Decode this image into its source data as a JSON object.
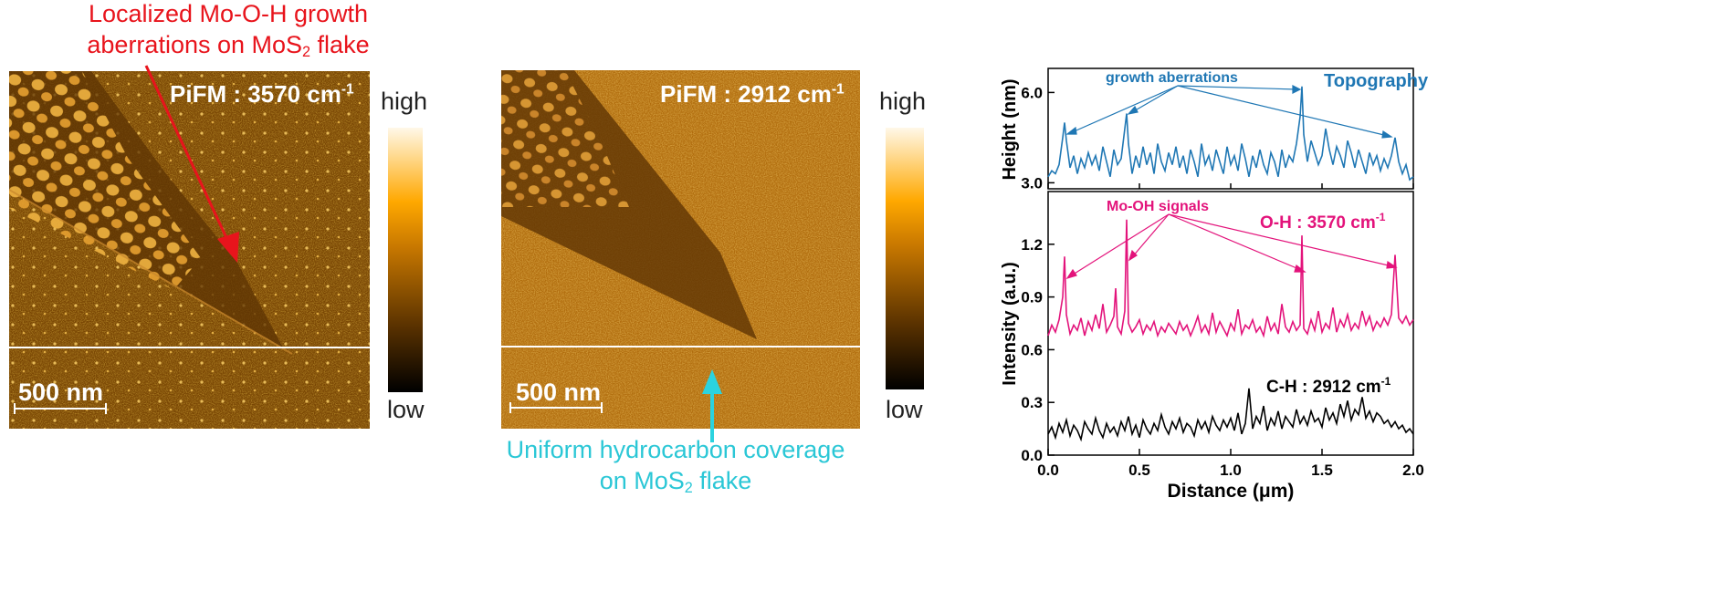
{
  "left_annotation": {
    "line1": "Localized Mo-O-H growth",
    "line2_pre": "aberrations on MoS",
    "line2_sub": "2",
    "line2_post": " flake",
    "color": "#e8141c"
  },
  "bottom_annotation": {
    "line1": "Uniform hydrocarbon coverage",
    "line2_pre": "on MoS",
    "line2_sub": "2",
    "line2_post": " flake",
    "color": "#2bc7d6"
  },
  "image_left": {
    "label_pre": "PiFM : 3570 cm",
    "label_sup": "-1",
    "scale": "500 nm"
  },
  "image_mid": {
    "label_pre": "PiFM : 2912 cm",
    "label_sup": "-1",
    "scale": "500 nm"
  },
  "colorbar": {
    "high": "high",
    "low": "low",
    "colors": [
      "#000000",
      "#5a3200",
      "#c87800",
      "#ffa800",
      "#fff8e8"
    ]
  },
  "chart_data": [
    {
      "type": "line",
      "ylabel": "Height (nm)",
      "xlim": [
        0,
        2.0
      ],
      "ylim": [
        2.8,
        6.8
      ],
      "yticks": [
        3.0,
        6.0
      ],
      "ytick_labels": [
        "3.0",
        "6.0"
      ],
      "series": [
        {
          "name": "Topography",
          "color": "#1f77b4",
          "x": [
            0.0,
            0.02,
            0.04,
            0.06,
            0.08,
            0.09,
            0.1,
            0.12,
            0.14,
            0.16,
            0.18,
            0.2,
            0.22,
            0.24,
            0.26,
            0.28,
            0.3,
            0.32,
            0.34,
            0.36,
            0.38,
            0.4,
            0.42,
            0.43,
            0.44,
            0.46,
            0.48,
            0.5,
            0.52,
            0.54,
            0.56,
            0.58,
            0.6,
            0.62,
            0.64,
            0.66,
            0.68,
            0.7,
            0.72,
            0.74,
            0.76,
            0.78,
            0.8,
            0.82,
            0.84,
            0.86,
            0.88,
            0.9,
            0.92,
            0.94,
            0.96,
            0.98,
            1.0,
            1.02,
            1.04,
            1.06,
            1.08,
            1.1,
            1.12,
            1.14,
            1.16,
            1.18,
            1.2,
            1.22,
            1.24,
            1.26,
            1.28,
            1.3,
            1.32,
            1.34,
            1.36,
            1.38,
            1.39,
            1.4,
            1.42,
            1.44,
            1.46,
            1.48,
            1.5,
            1.52,
            1.54,
            1.56,
            1.58,
            1.6,
            1.62,
            1.64,
            1.66,
            1.68,
            1.7,
            1.72,
            1.74,
            1.76,
            1.78,
            1.8,
            1.82,
            1.84,
            1.86,
            1.88,
            1.9,
            1.92,
            1.94,
            1.96,
            1.98,
            2.0
          ],
          "y": [
            3.2,
            3.4,
            3.3,
            3.6,
            4.5,
            5.0,
            4.4,
            3.5,
            3.9,
            3.3,
            3.8,
            3.5,
            4.0,
            3.6,
            3.9,
            3.4,
            4.2,
            3.7,
            3.2,
            4.1,
            3.6,
            3.8,
            4.8,
            5.3,
            4.3,
            3.3,
            3.9,
            3.5,
            4.2,
            3.6,
            4.0,
            3.3,
            4.3,
            3.7,
            3.4,
            4.0,
            3.6,
            4.2,
            3.5,
            3.9,
            3.3,
            4.1,
            3.7,
            3.2,
            4.3,
            3.6,
            3.9,
            3.4,
            4.1,
            3.7,
            3.3,
            4.2,
            3.6,
            3.9,
            3.4,
            4.3,
            3.8,
            3.2,
            3.9,
            3.5,
            4.1,
            3.6,
            3.3,
            4.0,
            3.7,
            3.2,
            4.1,
            3.5,
            3.9,
            3.7,
            4.3,
            5.2,
            6.2,
            4.6,
            3.7,
            4.4,
            4.0,
            3.6,
            3.9,
            4.8,
            4.1,
            3.6,
            4.2,
            3.9,
            3.5,
            4.4,
            4.0,
            3.5,
            4.1,
            3.7,
            3.3,
            4.0,
            3.6,
            3.9,
            3.4,
            3.8,
            3.5,
            3.9,
            4.5,
            3.7,
            3.3,
            3.6,
            3.1,
            3.2
          ]
        }
      ]
    },
    {
      "type": "line",
      "xlabel": "Distance (μm)",
      "ylabel": "Intensity (a.u.)",
      "xlim": [
        0,
        2.0
      ],
      "ylim": [
        0,
        1.5
      ],
      "xticks": [
        0.0,
        0.5,
        1.0,
        1.5,
        2.0
      ],
      "xtick_labels": [
        "0.0",
        "0.5",
        "1.0",
        "1.5",
        "2.0"
      ],
      "yticks": [
        0.0,
        0.3,
        0.6,
        0.9,
        1.2
      ],
      "ytick_labels": [
        "0.0",
        "0.3",
        "0.6",
        "0.9",
        "1.2"
      ],
      "series": [
        {
          "name_pre": "O-H : 3570 cm",
          "name_sup": "-1",
          "color": "#e3137b",
          "x": [
            0.0,
            0.02,
            0.04,
            0.06,
            0.08,
            0.09,
            0.1,
            0.12,
            0.14,
            0.16,
            0.18,
            0.2,
            0.22,
            0.24,
            0.26,
            0.28,
            0.3,
            0.32,
            0.34,
            0.36,
            0.37,
            0.38,
            0.4,
            0.42,
            0.43,
            0.44,
            0.46,
            0.48,
            0.5,
            0.52,
            0.54,
            0.56,
            0.58,
            0.6,
            0.62,
            0.64,
            0.66,
            0.68,
            0.7,
            0.72,
            0.74,
            0.76,
            0.78,
            0.8,
            0.82,
            0.84,
            0.86,
            0.88,
            0.9,
            0.92,
            0.94,
            0.96,
            0.98,
            1.0,
            1.02,
            1.04,
            1.06,
            1.08,
            1.1,
            1.12,
            1.14,
            1.16,
            1.18,
            1.2,
            1.22,
            1.24,
            1.26,
            1.28,
            1.3,
            1.32,
            1.34,
            1.36,
            1.38,
            1.39,
            1.4,
            1.42,
            1.44,
            1.46,
            1.48,
            1.5,
            1.52,
            1.54,
            1.56,
            1.58,
            1.6,
            1.62,
            1.64,
            1.66,
            1.68,
            1.7,
            1.72,
            1.74,
            1.76,
            1.78,
            1.8,
            1.82,
            1.84,
            1.86,
            1.88,
            1.9,
            1.92,
            1.94,
            1.96,
            1.98,
            2.0
          ],
          "y": [
            0.68,
            0.74,
            0.7,
            0.77,
            0.9,
            1.13,
            0.8,
            0.69,
            0.74,
            0.71,
            0.78,
            0.68,
            0.76,
            0.71,
            0.8,
            0.72,
            0.86,
            0.7,
            0.74,
            0.79,
            0.95,
            0.73,
            0.69,
            0.82,
            1.34,
            0.75,
            0.7,
            0.73,
            0.77,
            0.69,
            0.74,
            0.71,
            0.76,
            0.68,
            0.73,
            0.7,
            0.75,
            0.72,
            0.69,
            0.76,
            0.71,
            0.74,
            0.68,
            0.73,
            0.79,
            0.7,
            0.74,
            0.69,
            0.81,
            0.7,
            0.76,
            0.72,
            0.68,
            0.75,
            0.71,
            0.83,
            0.69,
            0.74,
            0.72,
            0.77,
            0.7,
            0.73,
            0.68,
            0.79,
            0.71,
            0.75,
            0.69,
            0.86,
            0.73,
            0.7,
            0.76,
            0.71,
            0.74,
            1.25,
            0.72,
            0.69,
            0.77,
            0.71,
            0.82,
            0.7,
            0.75,
            0.72,
            0.84,
            0.7,
            0.77,
            0.73,
            0.8,
            0.71,
            0.75,
            0.72,
            0.82,
            0.74,
            0.79,
            0.71,
            0.76,
            0.73,
            0.78,
            0.74,
            0.8,
            1.14,
            0.78,
            0.75,
            0.79,
            0.74,
            0.77
          ]
        },
        {
          "name_pre": "C-H : 2912 cm",
          "name_sup": "-1",
          "color": "#000000",
          "x": [
            0.0,
            0.02,
            0.04,
            0.06,
            0.08,
            0.1,
            0.12,
            0.14,
            0.16,
            0.18,
            0.2,
            0.22,
            0.24,
            0.26,
            0.28,
            0.3,
            0.32,
            0.34,
            0.36,
            0.38,
            0.4,
            0.42,
            0.44,
            0.46,
            0.48,
            0.5,
            0.52,
            0.54,
            0.56,
            0.58,
            0.6,
            0.62,
            0.64,
            0.66,
            0.68,
            0.7,
            0.72,
            0.74,
            0.76,
            0.78,
            0.8,
            0.82,
            0.84,
            0.86,
            0.88,
            0.9,
            0.92,
            0.94,
            0.96,
            0.98,
            1.0,
            1.02,
            1.04,
            1.06,
            1.08,
            1.1,
            1.12,
            1.14,
            1.16,
            1.18,
            1.2,
            1.22,
            1.24,
            1.26,
            1.28,
            1.3,
            1.32,
            1.34,
            1.36,
            1.38,
            1.4,
            1.42,
            1.44,
            1.46,
            1.48,
            1.5,
            1.52,
            1.54,
            1.56,
            1.58,
            1.6,
            1.62,
            1.64,
            1.66,
            1.68,
            1.7,
            1.72,
            1.74,
            1.76,
            1.78,
            1.8,
            1.82,
            1.84,
            1.86,
            1.88,
            1.9,
            1.92,
            1.94,
            1.96,
            1.98,
            2.0
          ],
          "y": [
            0.12,
            0.16,
            0.1,
            0.18,
            0.13,
            0.2,
            0.11,
            0.17,
            0.14,
            0.09,
            0.19,
            0.15,
            0.12,
            0.21,
            0.14,
            0.1,
            0.18,
            0.13,
            0.16,
            0.11,
            0.19,
            0.14,
            0.22,
            0.12,
            0.17,
            0.1,
            0.2,
            0.15,
            0.12,
            0.18,
            0.14,
            0.23,
            0.16,
            0.12,
            0.19,
            0.15,
            0.21,
            0.13,
            0.18,
            0.16,
            0.11,
            0.2,
            0.15,
            0.19,
            0.13,
            0.22,
            0.17,
            0.14,
            0.2,
            0.16,
            0.21,
            0.14,
            0.24,
            0.12,
            0.18,
            0.38,
            0.15,
            0.22,
            0.18,
            0.28,
            0.14,
            0.21,
            0.17,
            0.25,
            0.15,
            0.22,
            0.19,
            0.16,
            0.26,
            0.18,
            0.22,
            0.17,
            0.25,
            0.19,
            0.21,
            0.16,
            0.27,
            0.2,
            0.24,
            0.18,
            0.29,
            0.22,
            0.31,
            0.2,
            0.26,
            0.23,
            0.33,
            0.21,
            0.25,
            0.19,
            0.24,
            0.22,
            0.18,
            0.2,
            0.16,
            0.19,
            0.15,
            0.17,
            0.13,
            0.15,
            0.12
          ]
        }
      ]
    }
  ],
  "plot_annotations": {
    "growth": "growth aberrations",
    "topo": "Topography",
    "mooh": "Mo-OH signals"
  }
}
